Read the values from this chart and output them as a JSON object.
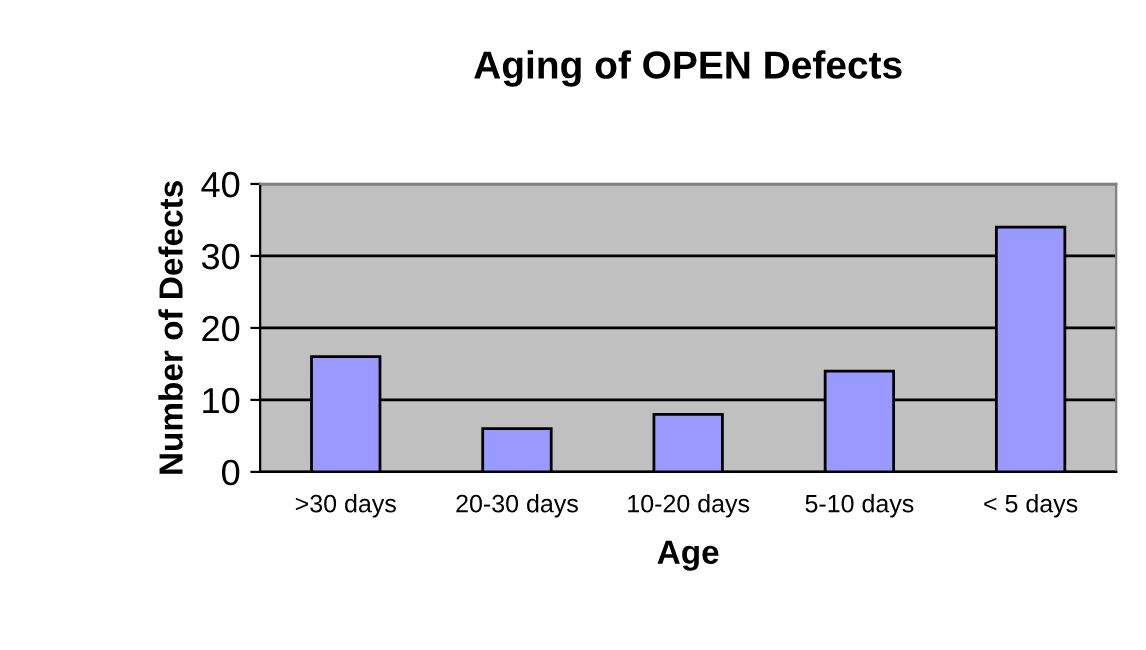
{
  "chart_data": {
    "type": "bar",
    "title": "Aging of OPEN Defects",
    "xlabel": "Age",
    "ylabel": "Number of Defects",
    "categories": [
      ">30 days",
      "20-30 days",
      "10-20 days",
      "5-10 days",
      "< 5 days"
    ],
    "values": [
      16,
      6,
      8,
      14,
      34
    ],
    "color": "#9999ff",
    "ylim": [
      0,
      40
    ],
    "yticks": [
      0,
      10,
      20,
      30,
      40
    ],
    "grid": "y"
  }
}
